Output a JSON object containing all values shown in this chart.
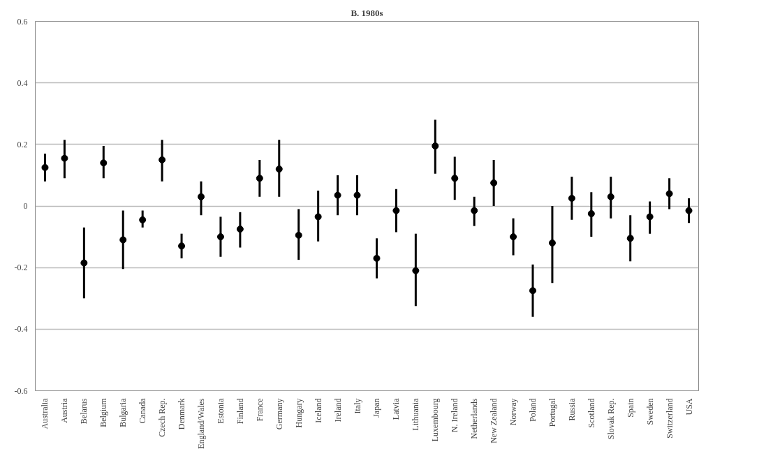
{
  "chart_data": {
    "type": "scatter",
    "title": "B. 1980s",
    "categories": [
      "Australia",
      "Austria",
      "Belarus",
      "Belgium",
      "Bulgaria",
      "Canada",
      "Czech Rep.",
      "Denmark",
      "England/Wales",
      "Estonia",
      "Finland",
      "France",
      "Germany",
      "Hungary",
      "Iceland",
      "Ireland",
      "Italy",
      "Japan",
      "Latvia",
      "Lithuania",
      "Luxembourg",
      "N. Ireland",
      "Netherlands",
      "New Zealand",
      "Norway",
      "Poland",
      "Portugal",
      "Russia",
      "Scotland",
      "Slovak Rep.",
      "Spain",
      "Sweden",
      "Switzerland",
      "USA"
    ],
    "series": [
      {
        "color": "#000000",
        "values": [
          0.125,
          0.155,
          -0.185,
          0.14,
          -0.11,
          -0.045,
          0.15,
          -0.13,
          0.03,
          -0.1,
          -0.075,
          0.09,
          0.12,
          -0.095,
          -0.035,
          0.035,
          0.035,
          -0.17,
          -0.015,
          -0.21,
          0.195,
          0.09,
          -0.015,
          0.075,
          -0.1,
          -0.275,
          -0.12,
          0.025,
          -0.025,
          0.03,
          -0.105,
          -0.035,
          0.04,
          -0.015
        ],
        "errors": [
          [
            0.08,
            0.17
          ],
          [
            0.09,
            0.215
          ],
          [
            -0.3,
            -0.07
          ],
          [
            0.09,
            0.195
          ],
          [
            -0.205,
            -0.015
          ],
          [
            -0.07,
            -0.015
          ],
          [
            0.08,
            0.215
          ],
          [
            -0.17,
            -0.09
          ],
          [
            -0.03,
            0.08
          ],
          [
            -0.165,
            -0.035
          ],
          [
            -0.135,
            -0.02
          ],
          [
            0.03,
            0.15
          ],
          [
            0.03,
            0.215
          ],
          [
            -0.175,
            -0.01
          ],
          [
            -0.115,
            0.05
          ],
          [
            -0.03,
            0.1
          ],
          [
            -0.03,
            0.1
          ],
          [
            -0.235,
            -0.105
          ],
          [
            -0.085,
            0.055
          ],
          [
            -0.325,
            -0.09
          ],
          [
            0.105,
            0.28
          ],
          [
            0.02,
            0.16
          ],
          [
            -0.065,
            0.03
          ],
          [
            0.0,
            0.15
          ],
          [
            -0.16,
            -0.04
          ],
          [
            -0.36,
            -0.19
          ],
          [
            -0.25,
            0.0
          ],
          [
            -0.045,
            0.095
          ],
          [
            -0.1,
            0.045
          ],
          [
            -0.04,
            0.095
          ],
          [
            -0.18,
            -0.03
          ],
          [
            -0.09,
            0.015
          ],
          [
            -0.01,
            0.09
          ],
          [
            -0.055,
            0.025
          ]
        ]
      }
    ],
    "ylim": [
      -0.6,
      0.6
    ],
    "yticks": [
      {
        "value": -0.6,
        "label": "-0.6"
      },
      {
        "value": -0.4,
        "label": "-0.4"
      },
      {
        "value": -0.2,
        "label": "-0.2"
      },
      {
        "value": 0,
        "label": "0"
      },
      {
        "value": 0.2,
        "label": "0.2"
      },
      {
        "value": 0.4,
        "label": "0.4"
      },
      {
        "value": 0.6,
        "label": "0.6"
      }
    ],
    "grid": "y",
    "marker": "circle"
  }
}
